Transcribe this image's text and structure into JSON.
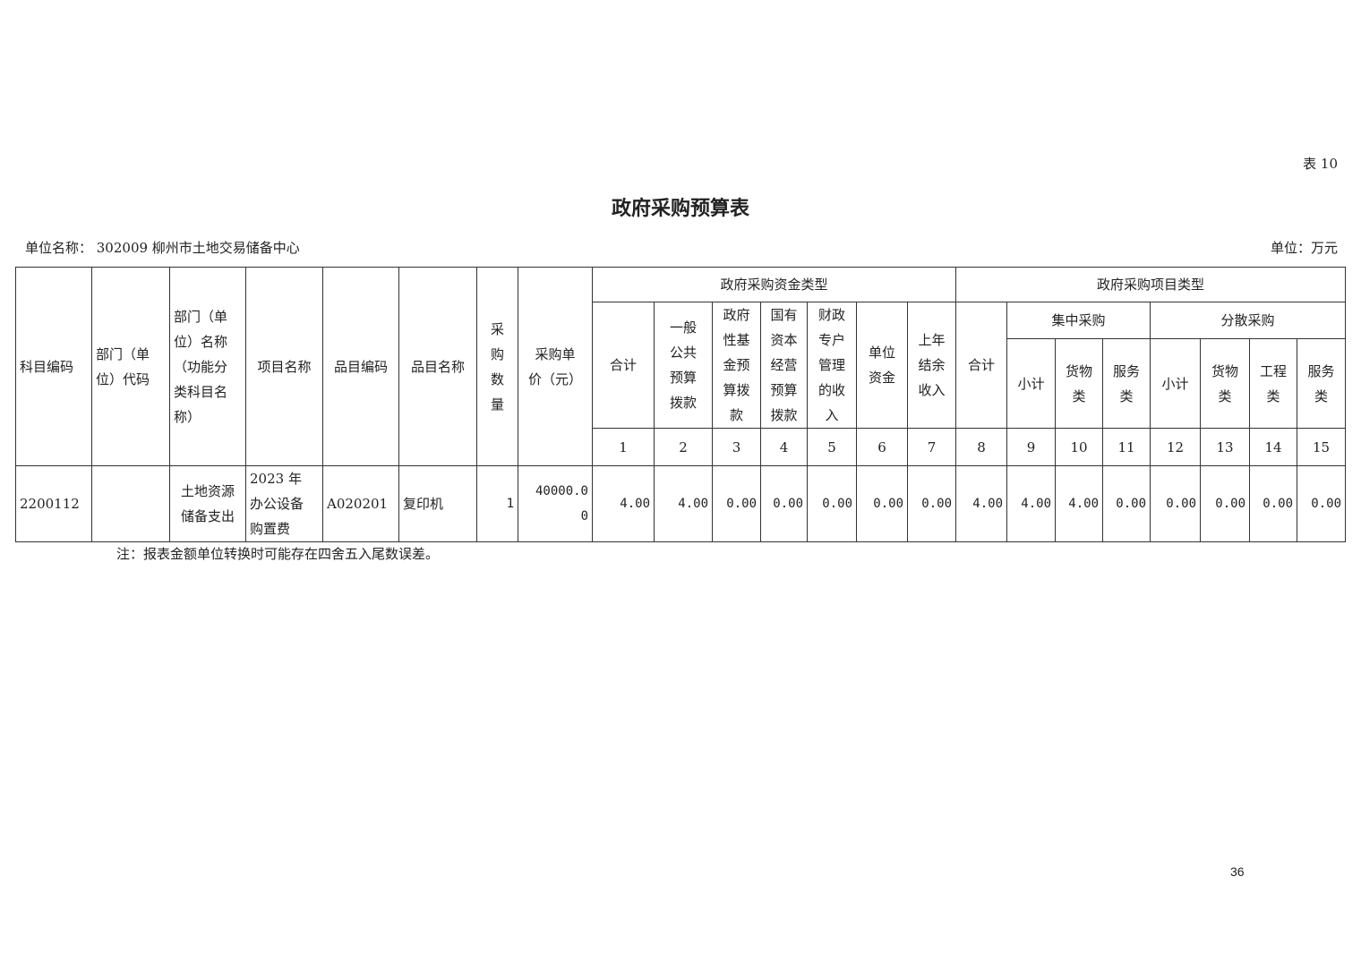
{
  "table_no": "表 10",
  "title": "政府采购预算表",
  "unit_name": "单位名称：  302009 柳州市土地交易储备中心",
  "unit": "单位：万元",
  "headers": {
    "subject_code": "科目编码",
    "dept_code": "部门（单\n位）代码",
    "dept_name": "部门（单\n位）名称\n（功能分\n类科目名\n称）",
    "project_name": "项目名称",
    "item_code": "品目编码",
    "item_name": "品目名称",
    "quantity": "采\n购\n数\n量",
    "unit_price": "采购单\n价（元）",
    "fund_type": "政府采购资金类型",
    "project_type": "政府采购项目类型",
    "fund_cols": [
      "合计",
      "一般\n公共\n预算\n拨款",
      "政府\n性基\n金预\n算拨\n款",
      "国有\n资本\n经营\n预算\n拨款",
      "财政\n专户\n管理\n的收\n入",
      "单位\n资金",
      "上年\n结余\n收入"
    ],
    "proj_total": "合计",
    "central": "集中采购",
    "dispersed": "分散采购",
    "central_cols": [
      "小计",
      "货物\n类",
      "服务\n类"
    ],
    "dispersed_cols": [
      "小计",
      "货物\n类",
      "工程\n类",
      "服务\n类"
    ],
    "index": [
      "1",
      "2",
      "3",
      "4",
      "5",
      "6",
      "7",
      "8",
      "9",
      "10",
      "11",
      "12",
      "13",
      "14",
      "15"
    ]
  },
  "rows": [
    {
      "subject_code": "2200112",
      "dept_code": "",
      "dept_name": "土地资源\n储备支出",
      "project_name": "2023    年\n办公设备\n购置费",
      "item_code": "A020201",
      "item_name": "复印机",
      "quantity": "1",
      "unit_price": "40000.0\n0",
      "values": [
        "4.00",
        "4.00",
        "0.00",
        "0.00",
        "0.00",
        "0.00",
        "0.00",
        "4.00",
        "4.00",
        "4.00",
        "0.00",
        "0.00",
        "0.00",
        "0.00",
        "0.00"
      ]
    }
  ],
  "note": "注：报表金额单位转换时可能存在四舍五入尾数误差。",
  "page_number": "36"
}
